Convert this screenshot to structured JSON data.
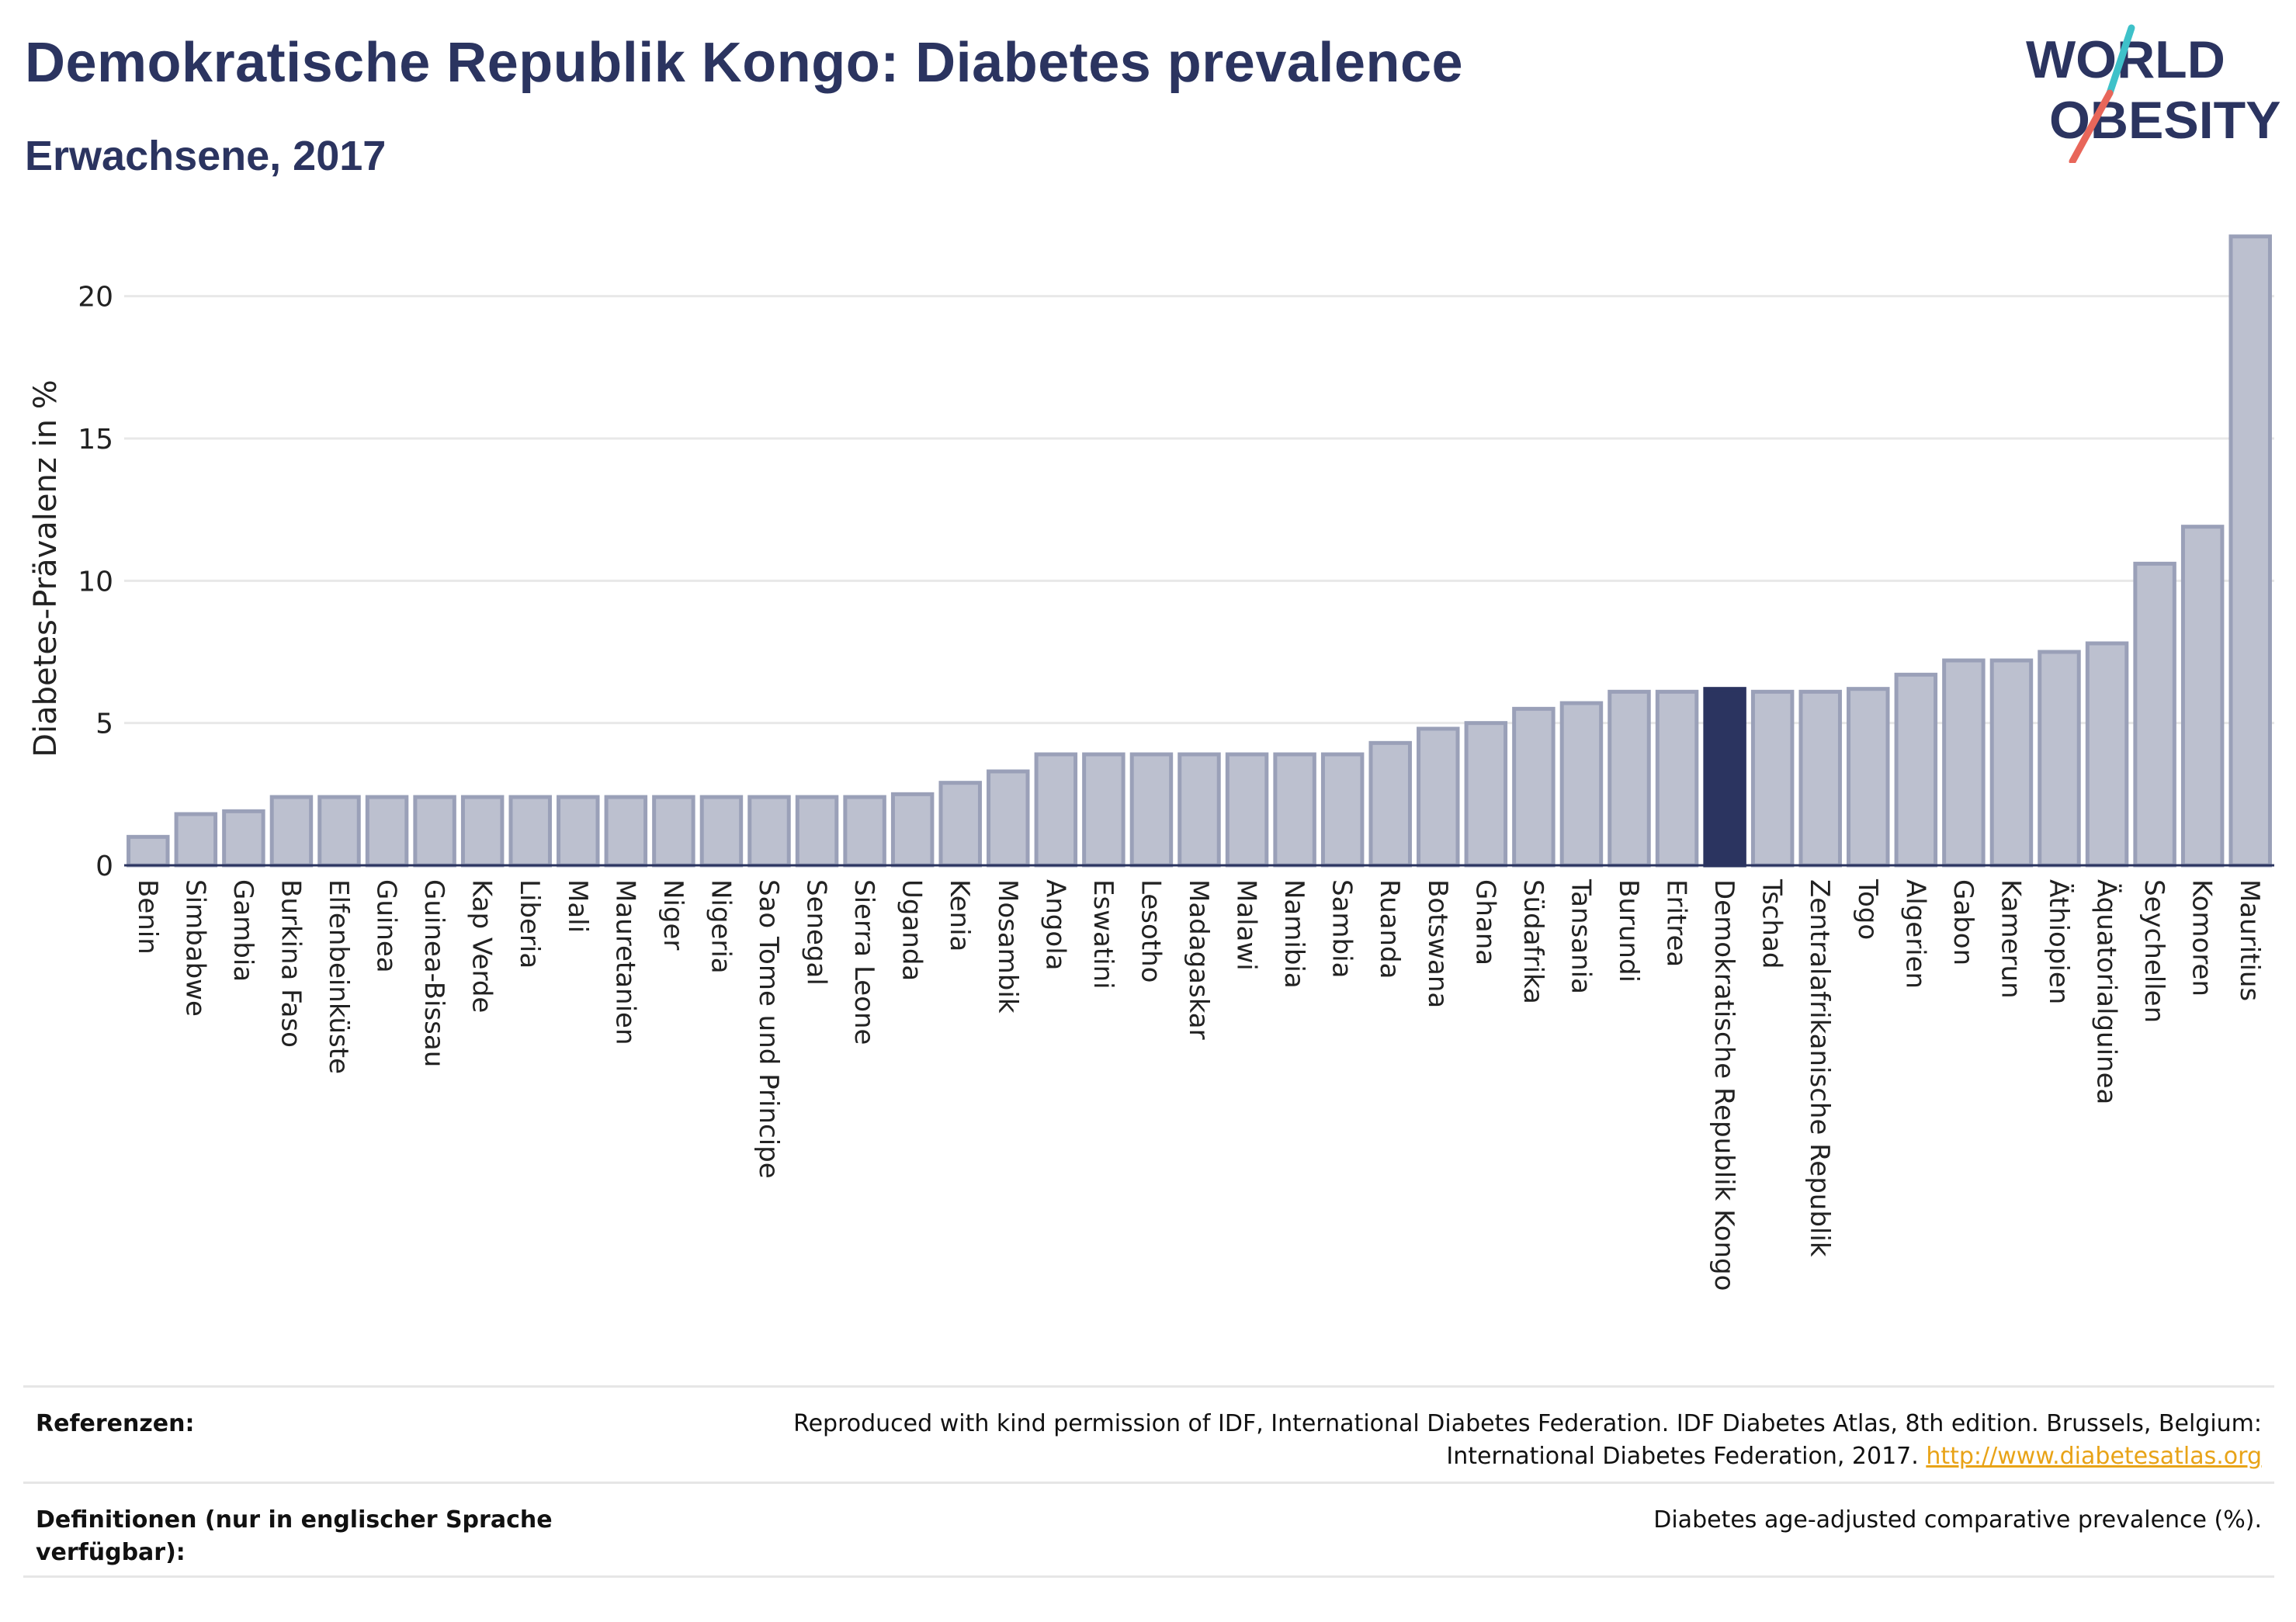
{
  "header": {
    "title": "Demokratische Republik Kongo: Diabetes prevalence",
    "subtitle": "Erwachsene, 2017"
  },
  "logo": {
    "line1": "WORLD",
    "line2": "OBESITY",
    "slash_colors": [
      "#3ec1c9",
      "#e8665a"
    ]
  },
  "colors": {
    "bar": "#bcc0cf",
    "bar_border": "#9aa0b8",
    "highlight": "#2b3460",
    "gridline": "#e8e8e8",
    "axis": "#2b3460"
  },
  "chart_data": {
    "type": "bar",
    "title": "Demokratische Republik Kongo: Diabetes prevalence",
    "subtitle": "Erwachsene, 2017",
    "ylabel": "Diabetes-Prävalenz in %",
    "xlabel": "",
    "ylim": [
      0,
      22.5
    ],
    "yticks": [
      0,
      5,
      10,
      15,
      20
    ],
    "highlight": "Demokratische Republik Kongo",
    "grid": true,
    "categories": [
      "Benin",
      "Simbabwe",
      "Gambia",
      "Burkina Faso",
      "Elfenbeinküste",
      "Guinea",
      "Guinea-Bissau",
      "Kap Verde",
      "Liberia",
      "Mali",
      "Mauretanien",
      "Niger",
      "Nigeria",
      "Sao Tome und Principe",
      "Senegal",
      "Sierra Leone",
      "Uganda",
      "Kenia",
      "Mosambik",
      "Angola",
      "Eswatini",
      "Lesotho",
      "Madagaskar",
      "Malawi",
      "Namibia",
      "Sambia",
      "Ruanda",
      "Botswana",
      "Ghana",
      "Südafrika",
      "Tansania",
      "Burundi",
      "Eritrea",
      "Demokratische Republik Kongo",
      "Tschad",
      "Zentralafrikanische Republik",
      "Togo",
      "Algerien",
      "Gabon",
      "Kamerun",
      "Äthiopien",
      "Äquatorialguinea",
      "Seychellen",
      "Komoren",
      "Mauritius"
    ],
    "values": [
      1.0,
      1.8,
      1.9,
      2.4,
      2.4,
      2.4,
      2.4,
      2.4,
      2.4,
      2.4,
      2.4,
      2.4,
      2.4,
      2.4,
      2.4,
      2.4,
      2.5,
      2.9,
      3.3,
      3.9,
      3.9,
      3.9,
      3.9,
      3.9,
      3.9,
      3.9,
      4.3,
      4.8,
      5.0,
      5.5,
      5.7,
      6.1,
      6.1,
      6.2,
      6.1,
      6.1,
      6.2,
      6.7,
      7.2,
      7.2,
      7.5,
      7.8,
      10.6,
      11.9,
      22.1
    ]
  },
  "footer": {
    "references_label": "Referenzen:",
    "references_text_line1": "Reproduced with kind permission of IDF, International Diabetes Federation. IDF Diabetes Atlas, 8th edition. Brussels, Belgium:",
    "references_text_line2": "International Diabetes Federation, 2017.",
    "references_link": "http://www.diabetesatlas.org",
    "definitions_label": "Definitionen (nur in englischer Sprache verfügbar):",
    "definitions_text": "Diabetes age-adjusted comparative prevalence (%)."
  }
}
